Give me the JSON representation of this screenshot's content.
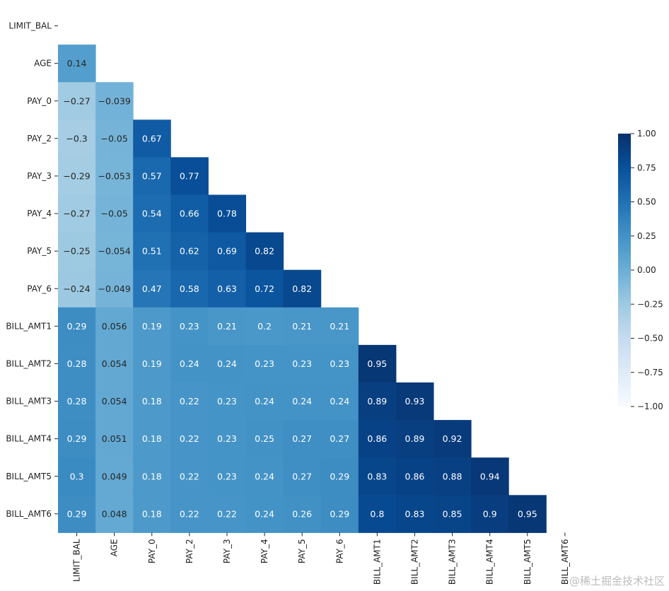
{
  "chart_data": {
    "type": "heatmap",
    "title": "",
    "xlabel": "",
    "ylabel": "",
    "colormap": "Blues",
    "mask": "upper-triangle",
    "vmin": -1.0,
    "vmax": 1.0,
    "labels": [
      "LIMIT_BAL",
      "AGE",
      "PAY_0",
      "PAY_2",
      "PAY_3",
      "PAY_4",
      "PAY_5",
      "PAY_6",
      "BILL_AMT1",
      "BILL_AMT2",
      "BILL_AMT3",
      "BILL_AMT4",
      "BILL_AMT5",
      "BILL_AMT6"
    ],
    "values": [
      [],
      [
        "0.14"
      ],
      [
        "-0.27",
        "-0.039"
      ],
      [
        "-0.3",
        "-0.05",
        "0.67"
      ],
      [
        "-0.29",
        "-0.053",
        "0.57",
        "0.77"
      ],
      [
        "-0.27",
        "-0.05",
        "0.54",
        "0.66",
        "0.78"
      ],
      [
        "-0.25",
        "-0.054",
        "0.51",
        "0.62",
        "0.69",
        "0.82"
      ],
      [
        "-0.24",
        "-0.049",
        "0.47",
        "0.58",
        "0.63",
        "0.72",
        "0.82"
      ],
      [
        "0.29",
        "0.056",
        "0.19",
        "0.23",
        "0.21",
        "0.2",
        "0.21",
        "0.21"
      ],
      [
        "0.28",
        "0.054",
        "0.19",
        "0.24",
        "0.24",
        "0.23",
        "0.23",
        "0.23",
        "0.95"
      ],
      [
        "0.28",
        "0.054",
        "0.18",
        "0.22",
        "0.23",
        "0.24",
        "0.24",
        "0.24",
        "0.89",
        "0.93"
      ],
      [
        "0.29",
        "0.051",
        "0.18",
        "0.22",
        "0.23",
        "0.25",
        "0.27",
        "0.27",
        "0.86",
        "0.89",
        "0.92"
      ],
      [
        "0.3",
        "0.049",
        "0.18",
        "0.22",
        "0.23",
        "0.24",
        "0.27",
        "0.29",
        "0.83",
        "0.86",
        "0.88",
        "0.94"
      ],
      [
        "0.29",
        "0.048",
        "0.18",
        "0.22",
        "0.22",
        "0.24",
        "0.26",
        "0.29",
        "0.8",
        "0.83",
        "0.85",
        "0.9",
        "0.95"
      ]
    ],
    "colorbar_ticks": [
      "1.00",
      "0.75",
      "0.50",
      "0.25",
      "0.00",
      "−0.25",
      "−0.50",
      "−0.75",
      "−1.00"
    ]
  },
  "watermark": "@稀土掘金技术社区"
}
